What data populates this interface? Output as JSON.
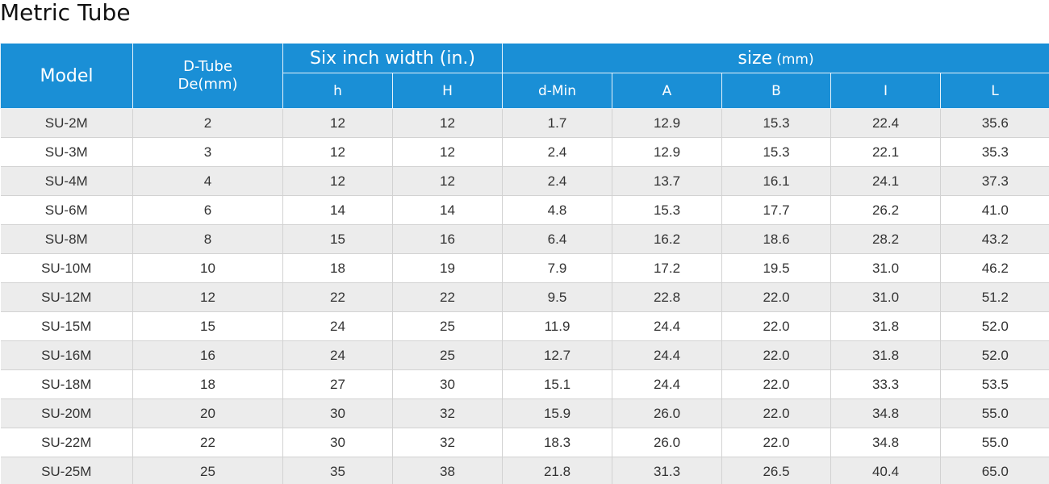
{
  "page": {
    "title": "Metric Tube"
  },
  "table": {
    "headers": {
      "model": "Model",
      "d_tube_line1": "D-Tube",
      "d_tube_line2": "De(mm)",
      "six_inch_width": "Six inch width (in.)",
      "size": "size",
      "size_unit": "(mm)",
      "h": "h",
      "H": "H",
      "d_min": "d-Min",
      "A": "A",
      "B": "B",
      "I": "I",
      "L": "L"
    },
    "rows": [
      [
        "SU-2M",
        "2",
        "12",
        "12",
        "1.7",
        "12.9",
        "15.3",
        "22.4",
        "35.6"
      ],
      [
        "SU-3M",
        "3",
        "12",
        "12",
        "2.4",
        "12.9",
        "15.3",
        "22.1",
        "35.3"
      ],
      [
        "SU-4M",
        "4",
        "12",
        "12",
        "2.4",
        "13.7",
        "16.1",
        "24.1",
        "37.3"
      ],
      [
        "SU-6M",
        "6",
        "14",
        "14",
        "4.8",
        "15.3",
        "17.7",
        "26.2",
        "41.0"
      ],
      [
        "SU-8M",
        "8",
        "15",
        "16",
        "6.4",
        "16.2",
        "18.6",
        "28.2",
        "43.2"
      ],
      [
        "SU-10M",
        "10",
        "18",
        "19",
        "7.9",
        "17.2",
        "19.5",
        "31.0",
        "46.2"
      ],
      [
        "SU-12M",
        "12",
        "22",
        "22",
        "9.5",
        "22.8",
        "22.0",
        "31.0",
        "51.2"
      ],
      [
        "SU-15M",
        "15",
        "24",
        "25",
        "11.9",
        "24.4",
        "22.0",
        "31.8",
        "52.0"
      ],
      [
        "SU-16M",
        "16",
        "24",
        "25",
        "12.7",
        "24.4",
        "22.0",
        "31.8",
        "52.0"
      ],
      [
        "SU-18M",
        "18",
        "27",
        "30",
        "15.1",
        "24.4",
        "22.0",
        "33.3",
        "53.5"
      ],
      [
        "SU-20M",
        "20",
        "30",
        "32",
        "15.9",
        "26.0",
        "22.0",
        "34.8",
        "55.0"
      ],
      [
        "SU-22M",
        "22",
        "30",
        "32",
        "18.3",
        "26.0",
        "22.0",
        "34.8",
        "55.0"
      ],
      [
        "SU-25M",
        "25",
        "35",
        "38",
        "21.8",
        "31.3",
        "26.5",
        "40.4",
        "65.0"
      ]
    ]
  },
  "colors": {
    "header_background": "#1a8fd6",
    "row_odd_background": "#ececec",
    "row_even_background": "#ffffff"
  }
}
